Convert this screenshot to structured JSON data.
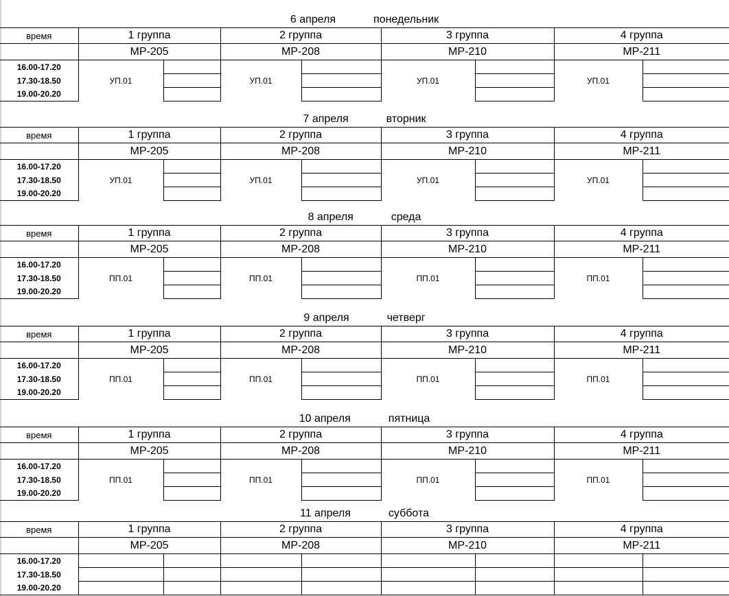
{
  "labels": {
    "time_header": "время"
  },
  "groups": [
    {
      "name": "1 группа",
      "code": "МР-205"
    },
    {
      "name": "2 группа",
      "code": "МР-208"
    },
    {
      "name": "3 группа",
      "code": "МР-210"
    },
    {
      "name": "4 группа",
      "code": "МР-211"
    }
  ],
  "times": [
    "16.00-17.20",
    "17.30-18.50",
    "19.00-20.20"
  ],
  "days": [
    {
      "date": "6 апреля",
      "weekday": "понедельник",
      "subjects": [
        "УП.01",
        "УП.01",
        "УП.01",
        "УП.01"
      ]
    },
    {
      "date": "7 апреля",
      "weekday": "вторник",
      "subjects": [
        "УП.01",
        "УП.01",
        "УП.01",
        "УП.01"
      ]
    },
    {
      "date": "8 апреля",
      "weekday": "среда",
      "subjects": [
        "ПП.01",
        "ПП.01",
        "ПП.01",
        "ПП.01"
      ]
    },
    {
      "date": "9 апреля",
      "weekday": "четверг",
      "subjects": [
        "ПП.01",
        "ПП.01",
        "ПП.01",
        "ПП.01"
      ]
    },
    {
      "date": "10 апреля",
      "weekday": "пятница",
      "subjects": [
        "ПП.01",
        "ПП.01",
        "ПП.01",
        "ПП.01"
      ]
    },
    {
      "date": "11 апреля",
      "weekday": "суббота",
      "subjects": []
    }
  ]
}
